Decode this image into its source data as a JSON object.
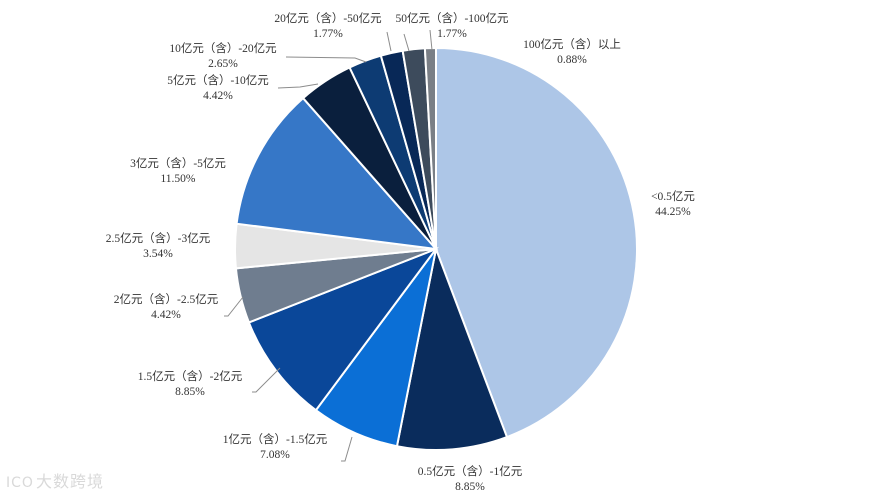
{
  "chart_data": {
    "type": "pie",
    "title": "",
    "start_angle_deg": 0,
    "direction": "clockwise",
    "slices": [
      {
        "label": "<0.5亿元",
        "pct_text": "44.25%",
        "value": 44.25,
        "color": "#adc6e7"
      },
      {
        "label": "0.5亿元（含）-1亿元",
        "pct_text": "8.85%",
        "value": 8.85,
        "color": "#0a2c5c"
      },
      {
        "label": "1亿元（含）-1.5亿元",
        "pct_text": "7.08%",
        "value": 7.08,
        "color": "#0b6fd6"
      },
      {
        "label": "1.5亿元（含）-2亿元",
        "pct_text": "8.85%",
        "value": 8.85,
        "color": "#0a4799"
      },
      {
        "label": "2亿元（含）-2.5亿元",
        "pct_text": "4.42%",
        "value": 4.42,
        "color": "#6f7d8f"
      },
      {
        "label": "2.5亿元（含）-3亿元",
        "pct_text": "3.54%",
        "value": 3.54,
        "color": "#e5e5e5"
      },
      {
        "label": "3亿元（含）-5亿元",
        "pct_text": "11.50%",
        "value": 11.5,
        "color": "#3677c7"
      },
      {
        "label": "5亿元（含）-10亿元",
        "pct_text": "4.42%",
        "value": 4.42,
        "color": "#0a1f3d"
      },
      {
        "label": "10亿元（含）-20亿元",
        "pct_text": "2.65%",
        "value": 2.65,
        "color": "#0d3b73"
      },
      {
        "label": "20亿元（含）-50亿元",
        "pct_text": "1.77%",
        "value": 1.77,
        "color": "#082857"
      },
      {
        "label": "50亿元（含）-100亿元",
        "pct_text": "1.77%",
        "value": 1.77,
        "color": "#3d4b5c"
      },
      {
        "label": "100亿元（含）以上",
        "pct_text": "0.88%",
        "value": 0.88,
        "color": "#7a7f86"
      }
    ]
  },
  "watermark": {
    "icon": "ICO",
    "text": "大数跨境"
  }
}
